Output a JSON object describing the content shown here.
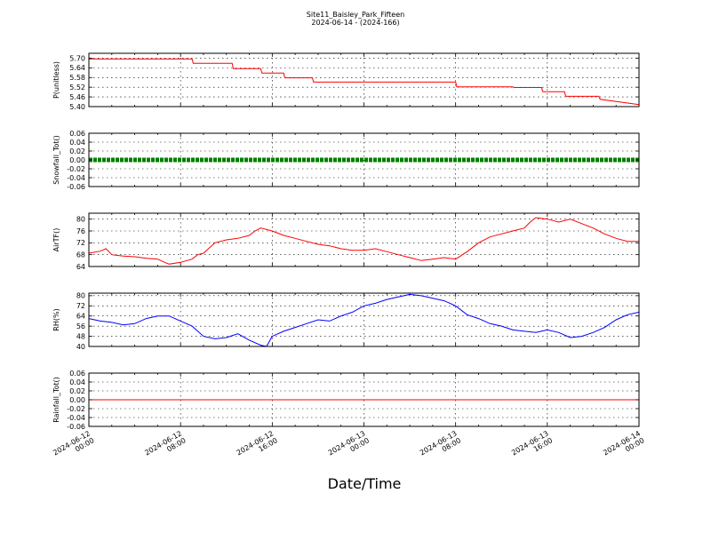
{
  "chart_data": {
    "type": "line",
    "title": "Site11_Baisley_Park_Fifteen",
    "subtitle": "2024-06-14 - (2024-166)",
    "xlabel": "Date/Time",
    "xlim": [
      "2024-06-12 00:00",
      "2024-06-14 00:00"
    ],
    "x_ticks": [
      {
        "line1": "2024-06-12",
        "line2": "00:00",
        "hour": 0
      },
      {
        "line1": "2024-06-12",
        "line2": "08:00",
        "hour": 8
      },
      {
        "line1": "2024-06-12",
        "line2": "16:00",
        "hour": 16
      },
      {
        "line1": "2024-06-13",
        "line2": "00:00",
        "hour": 24
      },
      {
        "line1": "2024-06-13",
        "line2": "08:00",
        "hour": 32
      },
      {
        "line1": "2024-06-13",
        "line2": "16:00",
        "hour": 40
      },
      {
        "line1": "2024-06-14",
        "line2": "00:00",
        "hour": 48
      }
    ],
    "grid": true,
    "panels": [
      {
        "ylabel": "P(unitless)",
        "color": "#ff0000",
        "style": "line",
        "ylim": [
          5.4,
          5.73
        ],
        "yticks": [
          "5.40",
          "5.46",
          "5.52",
          "5.58",
          "5.64",
          "5.70"
        ],
        "ytick_values": [
          5.4,
          5.46,
          5.52,
          5.58,
          5.64,
          5.7
        ],
        "hour": [
          0,
          9,
          9.1,
          12.5,
          12.6,
          15,
          15.1,
          17,
          17.1,
          19.5,
          19.6,
          32,
          32.1,
          37,
          37.1,
          39.5,
          39.6,
          41.5,
          41.6,
          44.5,
          44.6,
          48
        ],
        "values": [
          5.695,
          5.695,
          5.668,
          5.668,
          5.635,
          5.635,
          5.608,
          5.608,
          5.578,
          5.578,
          5.552,
          5.552,
          5.522,
          5.522,
          5.518,
          5.518,
          5.492,
          5.492,
          5.464,
          5.464,
          5.445,
          5.412
        ]
      },
      {
        "ylabel": "Snowfall_Tot()",
        "color": "#008000",
        "style": "dots",
        "ylim": [
          -0.06,
          0.06
        ],
        "yticks": [
          "-0.06",
          "-0.04",
          "-0.02",
          "0.00",
          "0.02",
          "0.04",
          "0.06"
        ],
        "ytick_values": [
          -0.06,
          -0.04,
          -0.02,
          0,
          0.02,
          0.04,
          0.06
        ],
        "hour": [
          0,
          48
        ],
        "values": [
          0,
          0
        ]
      },
      {
        "ylabel": "AirTF()",
        "color": "#ff0000",
        "style": "line",
        "ylim": [
          64,
          82
        ],
        "yticks": [
          "64",
          "68",
          "72",
          "76",
          "80"
        ],
        "ytick_values": [
          64,
          68,
          72,
          76,
          80
        ],
        "hour": [
          0,
          1,
          1.5,
          2,
          3,
          4,
          5,
          6,
          6.5,
          7,
          8,
          9,
          9.5,
          10,
          11,
          12,
          13,
          14,
          14.5,
          15,
          16,
          17,
          18,
          19,
          20,
          21,
          22,
          23,
          24,
          25,
          26,
          27,
          28,
          29,
          30,
          31,
          32,
          33,
          34,
          35,
          36,
          37,
          38,
          38.5,
          39,
          40,
          40.5,
          41,
          42,
          43,
          44,
          45,
          46,
          47,
          48
        ],
        "values": [
          68.5,
          69.2,
          70,
          68,
          67.5,
          67.3,
          66.8,
          66.5,
          65.6,
          64.8,
          65.4,
          66.5,
          68,
          68.5,
          72,
          73,
          73.5,
          74.5,
          76,
          77,
          76,
          74.5,
          73.5,
          72.5,
          71.5,
          71,
          70,
          69.5,
          69.5,
          70,
          69,
          68,
          67,
          66,
          66.5,
          67,
          66.5,
          69,
          72,
          74,
          75,
          76,
          77,
          79,
          80.5,
          80,
          79.5,
          79,
          80,
          78.5,
          77,
          75,
          73.5,
          72.5,
          72.5
        ]
      },
      {
        "ylabel": "RH(%)",
        "color": "#0000ff",
        "style": "line",
        "ylim": [
          40,
          82
        ],
        "yticks": [
          "40",
          "48",
          "56",
          "64",
          "72",
          "80"
        ],
        "ytick_values": [
          40,
          48,
          56,
          64,
          72,
          80
        ],
        "hour": [
          0,
          1,
          2,
          3,
          4,
          5,
          6,
          7,
          8,
          9,
          10,
          11,
          12,
          13,
          14,
          15,
          15.5,
          16,
          17,
          18,
          19,
          20,
          21,
          22,
          23,
          24,
          25,
          26,
          27,
          28,
          29,
          30,
          31,
          32,
          33,
          34,
          35,
          36,
          37,
          38,
          39,
          40,
          41,
          42,
          43,
          44,
          45,
          46,
          47,
          48
        ],
        "values": [
          62,
          60,
          59,
          57,
          58,
          62,
          64,
          64,
          60,
          56,
          48,
          46,
          47,
          50,
          45,
          41,
          40,
          48,
          52,
          55,
          58,
          61,
          60,
          64,
          67,
          72,
          74,
          77,
          79,
          81,
          80,
          78,
          76,
          72,
          65,
          62,
          58,
          56,
          53,
          52,
          51,
          53,
          51,
          47,
          48,
          51,
          55,
          61,
          65,
          67
        ]
      },
      {
        "ylabel": "Rainfall_Tot()",
        "color": "#ff0000",
        "style": "line",
        "ylim": [
          -0.06,
          0.06
        ],
        "yticks": [
          "-0.06",
          "-0.04",
          "-0.02",
          "0.00",
          "0.02",
          "0.04",
          "0.06"
        ],
        "ytick_values": [
          -0.06,
          -0.04,
          -0.02,
          0,
          0.02,
          0.04,
          0.06
        ],
        "hour": [
          0,
          48
        ],
        "values": [
          0,
          0
        ]
      }
    ]
  }
}
